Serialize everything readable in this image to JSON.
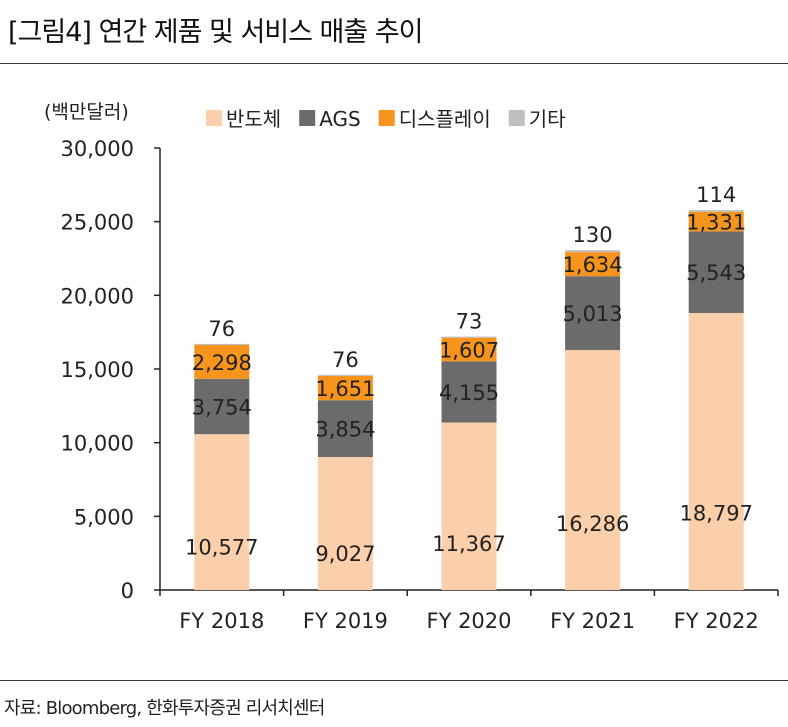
{
  "figure_title": "[그림4]  연간 제품 및 서비스 매출 추이",
  "source_note": "자료: Bloomberg, 한화투자증권 리서치센터",
  "chart_data": {
    "type": "bar",
    "stacked": true,
    "unit_label": "(백만달러)",
    "categories": [
      "FY 2018",
      "FY 2019",
      "FY 2020",
      "FY 2021",
      "FY 2022"
    ],
    "ylim": [
      0,
      30000
    ],
    "yticks": [
      0,
      5000,
      10000,
      15000,
      20000,
      25000,
      30000
    ],
    "ytick_labels": [
      "0",
      "5,000",
      "10,000",
      "15,000",
      "20,000",
      "25,000",
      "30,000"
    ],
    "legend_position": "top",
    "grid": false,
    "series": [
      {
        "name": "반도체",
        "color": "#fbcfa9",
        "values": [
          10577,
          9027,
          11367,
          16286,
          18797
        ],
        "labels": [
          "10,577",
          "9,027",
          "11,367",
          "16,286",
          "18,797"
        ]
      },
      {
        "name": "AGS",
        "color": "#6b6b6b",
        "values": [
          3754,
          3854,
          4155,
          5013,
          5543
        ],
        "labels": [
          "3,754",
          "3,854",
          "4,155",
          "5,013",
          "5,543"
        ]
      },
      {
        "name": "디스플레이",
        "color": "#f7941d",
        "values": [
          2298,
          1651,
          1607,
          1634,
          1331
        ],
        "labels": [
          "2,298",
          "1,651",
          "1,607",
          "1,634",
          "1,331"
        ]
      },
      {
        "name": "기타",
        "color": "#bfbfbf",
        "values": [
          76,
          76,
          73,
          130,
          114
        ],
        "labels": [
          "76",
          "76",
          "73",
          "130",
          "114"
        ]
      }
    ]
  }
}
